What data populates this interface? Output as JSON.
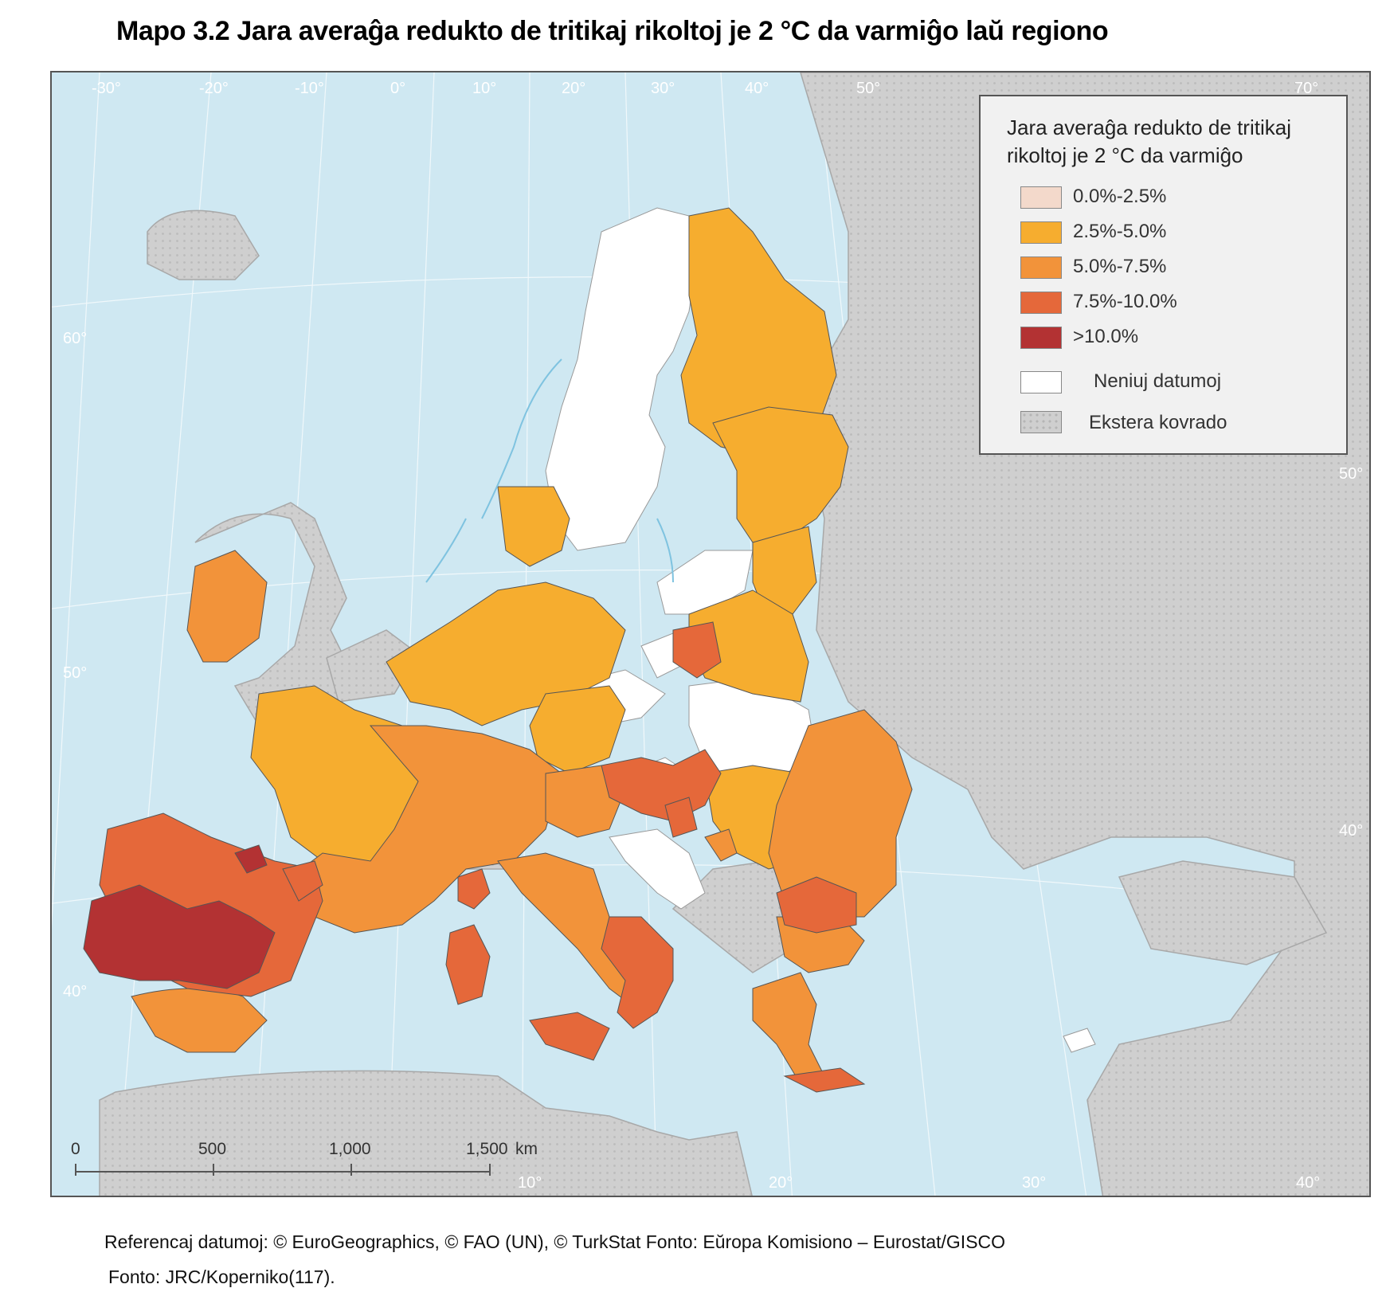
{
  "title": "Mapo 3.2 Jara averaĝa redukto de tritikaj rikoltoj je 2 °C da varmiĝo laŭ regiono",
  "legend": {
    "title": "Jara averaĝa redukto de tritikaj rikoltoj je 2 °C da varmiĝo",
    "classes": [
      {
        "label": "0.0%-2.5%",
        "color": "#f3d9cb"
      },
      {
        "label": "2.5%-5.0%",
        "color": "#f6ad2f"
      },
      {
        "label": "5.0%-7.5%",
        "color": "#f2933a"
      },
      {
        "label": "7.5%-10.0%",
        "color": "#e5683a"
      },
      {
        "label": ">10.0%",
        "color": "#b33233"
      }
    ],
    "no_data": {
      "label": "Neniuj datumoj",
      "color": "#ffffff"
    },
    "outside": {
      "label": "Ekstera kovrado",
      "color": "#cfcfcf"
    }
  },
  "scale_bar": {
    "ticks": [
      "0",
      "500",
      "1,000",
      "1,500"
    ],
    "unit": "km"
  },
  "graticule_labels": {
    "top": [
      "-30°",
      "-20°",
      "-10°",
      "0°",
      "10°",
      "20°",
      "30°",
      "40°",
      "50°",
      "70°"
    ],
    "left": [
      "60°",
      "50°",
      "40°"
    ],
    "right": [
      "50°",
      "40°"
    ],
    "bottom": [
      "10°",
      "20°",
      "30°",
      "40°"
    ]
  },
  "sources": {
    "reference": "Referencaj datumoj: © EuroGeographics, © FAO (UN), © TurkStat Fonto: Eŭropa Komisiono – Eurostat/GISCO",
    "source": "Fonto: JRC/Koperniko(117)."
  },
  "colors": {
    "sea": "#cfe8f2",
    "outside": "#cfcfcf",
    "border": "#444444"
  }
}
